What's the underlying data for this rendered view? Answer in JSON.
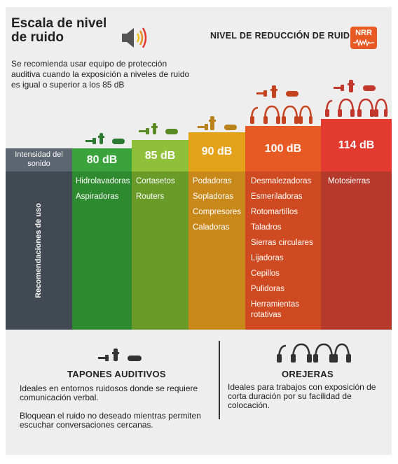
{
  "title": "Escala de nivel de ruido",
  "subtitle": "Se recomienda usar equipo de protección auditiva cuando la exposición a niveles de ruido es igual o superior a los 85 dB",
  "nrr_title": "NIVEL DE REDUCCIÓN DE RUIDO",
  "nrr_badge": "NRR",
  "row_label_intensity": "Intensidad del sonido",
  "row_label_uses": "Recomendaciones de uso",
  "columns": [
    {
      "db": "80 dB",
      "color": "#3aa33b",
      "uses_color": "#2d8a2f",
      "uses": [
        "Hidrolavadoras",
        "Aspiradoras"
      ]
    },
    {
      "db": "85 dB",
      "color": "#8fc03a",
      "uses_color": "#6a9a28",
      "uses": [
        "Cortasetos",
        "Routers"
      ]
    },
    {
      "db": "90 dB",
      "color": "#e3a21a",
      "uses_color": "#c8881a",
      "uses": [
        "Podadoras",
        "Sopladoras",
        "Compresores",
        "Caladoras"
      ]
    },
    {
      "db": "100 dB",
      "color": "#e85a24",
      "uses_color": "#cf4a20",
      "uses": [
        "Desmalezadoras",
        "Esmeriladoras",
        "Rotomartillos",
        "Taladros",
        "Sierras circulares",
        "Lijadoras",
        "Cepillos",
        "Pulidoras",
        "Herramientas rotativas"
      ]
    },
    {
      "db": "114 dB",
      "color": "#e23a2f",
      "uses_color": "#b63a2c",
      "uses": [
        "Motosierras"
      ]
    }
  ],
  "earplugs": {
    "title": "TAPONES AUDITIVOS",
    "text1": "Ideales en entornos ruidosos donde se requiere comunicación verbal.",
    "text2": "Bloquean el ruido no deseado mientras permiten escuchar conversaciones cercanas."
  },
  "earmuffs": {
    "title": "OREJERAS",
    "text1": "Ideales para trabajos con exposición de corta duración por su facilidad de colocación."
  }
}
